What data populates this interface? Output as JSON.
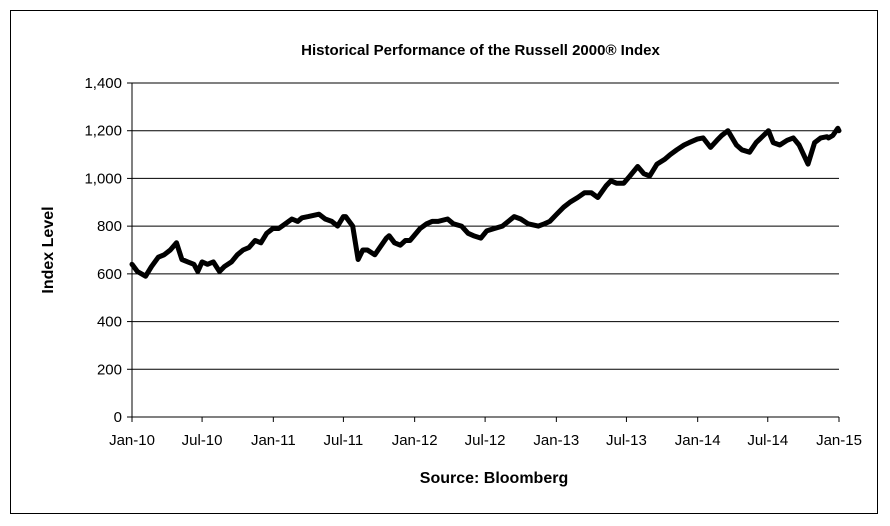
{
  "chart_data": {
    "type": "line",
    "title": "Historical Performance of the Russell 2000® Index",
    "xlabel": "Source: Bloomberg",
    "ylabel": "Index Level",
    "ylim": [
      0,
      1400
    ],
    "y_ticks": [
      0,
      200,
      400,
      600,
      800,
      1000,
      1200,
      1400
    ],
    "y_tick_labels": [
      "0",
      "200",
      "400",
      "600",
      "800",
      "1,000",
      "1,200",
      "1,400"
    ],
    "x_ticks": [
      "2010-01-01",
      "2010-07-01",
      "2011-01-01",
      "2011-07-01",
      "2012-01-01",
      "2012-07-01",
      "2013-01-01",
      "2013-07-01",
      "2014-01-01",
      "2014-07-01",
      "2015-01-01"
    ],
    "x_tick_labels": [
      "Jan-10",
      "Jul-10",
      "Jan-11",
      "Jul-11",
      "Jan-12",
      "Jul-12",
      "Jan-13",
      "Jul-13",
      "Jan-14",
      "Jul-14",
      "Jan-15"
    ],
    "xlim": [
      "2010-01-01",
      "2015-01-01"
    ],
    "grid": "horizontal",
    "line_color": "#000000",
    "series": [
      {
        "x": [
          "2010-01-01",
          "2010-01-15",
          "2010-02-05",
          "2010-02-20",
          "2010-03-10",
          "2010-03-25",
          "2010-04-10",
          "2010-04-26",
          "2010-05-10",
          "2010-05-25",
          "2010-06-10",
          "2010-06-20",
          "2010-07-01",
          "2010-07-15",
          "2010-07-30",
          "2010-08-15",
          "2010-08-27",
          "2010-09-15",
          "2010-09-30",
          "2010-10-15",
          "2010-10-30",
          "2010-11-15",
          "2010-11-30",
          "2010-12-15",
          "2010-12-31",
          "2011-01-15",
          "2011-02-01",
          "2011-02-18",
          "2011-03-05",
          "2011-03-16",
          "2011-04-01",
          "2011-04-29",
          "2011-05-15",
          "2011-06-01",
          "2011-06-16",
          "2011-07-01",
          "2011-07-07",
          "2011-07-25",
          "2011-08-08",
          "2011-08-20",
          "2011-09-01",
          "2011-09-20",
          "2011-10-03",
          "2011-10-20",
          "2011-10-27",
          "2011-11-10",
          "2011-11-25",
          "2011-12-08",
          "2011-12-20",
          "2012-01-15",
          "2012-02-01",
          "2012-02-15",
          "2012-03-01",
          "2012-03-26",
          "2012-04-10",
          "2012-05-01",
          "2012-05-18",
          "2012-06-01",
          "2012-06-20",
          "2012-07-05",
          "2012-07-25",
          "2012-08-15",
          "2012-09-14",
          "2012-10-01",
          "2012-10-20",
          "2012-11-15",
          "2012-12-01",
          "2012-12-15",
          "2013-01-02",
          "2013-01-20",
          "2013-02-05",
          "2013-02-25",
          "2013-03-15",
          "2013-04-01",
          "2013-04-18",
          "2013-05-10",
          "2013-05-22",
          "2013-06-05",
          "2013-06-24",
          "2013-07-10",
          "2013-07-30",
          "2013-08-15",
          "2013-08-30",
          "2013-09-18",
          "2013-10-08",
          "2013-10-22",
          "2013-11-08",
          "2013-11-27",
          "2013-12-10",
          "2013-12-31",
          "2014-01-15",
          "2014-02-03",
          "2014-02-20",
          "2014-03-04",
          "2014-03-20",
          "2014-04-11",
          "2014-04-25",
          "2014-05-15",
          "2014-06-01",
          "2014-06-20",
          "2014-07-03",
          "2014-07-15",
          "2014-08-01",
          "2014-08-20",
          "2014-09-05",
          "2014-09-20",
          "2014-10-13",
          "2014-10-30",
          "2014-11-15",
          "2014-12-01",
          "2014-12-05",
          "2014-12-16",
          "2014-12-29",
          "2015-01-01"
        ],
        "y": [
          640,
          610,
          590,
          630,
          670,
          680,
          700,
          730,
          660,
          650,
          640,
          610,
          650,
          640,
          650,
          610,
          630,
          650,
          680,
          700,
          710,
          740,
          730,
          770,
          790,
          790,
          810,
          830,
          820,
          835,
          840,
          850,
          830,
          820,
          800,
          840,
          840,
          800,
          660,
          700,
          700,
          680,
          710,
          750,
          760,
          730,
          720,
          740,
          740,
          790,
          810,
          820,
          820,
          830,
          810,
          800,
          770,
          760,
          750,
          780,
          790,
          800,
          840,
          830,
          810,
          800,
          810,
          820,
          850,
          880,
          900,
          920,
          940,
          940,
          920,
          970,
          990,
          980,
          980,
          1010,
          1050,
          1020,
          1010,
          1060,
          1080,
          1100,
          1120,
          1140,
          1150,
          1165,
          1170,
          1130,
          1160,
          1180,
          1200,
          1140,
          1120,
          1110,
          1150,
          1180,
          1200,
          1150,
          1140,
          1160,
          1170,
          1140,
          1060,
          1150,
          1170,
          1175,
          1170,
          1180,
          1210,
          1200
        ]
      }
    ]
  }
}
